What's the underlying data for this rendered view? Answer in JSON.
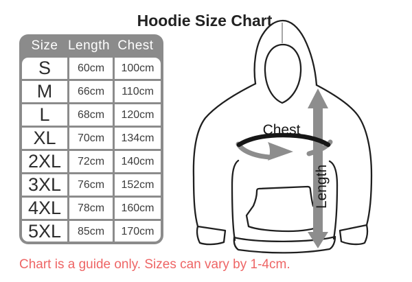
{
  "title": "Hoodie Size Chart",
  "table": {
    "headers": [
      "Size",
      "Length",
      "Chest"
    ],
    "rows": [
      [
        "S",
        "60cm",
        "100cm"
      ],
      [
        "M",
        "66cm",
        "110cm"
      ],
      [
        "L",
        "68cm",
        "120cm"
      ],
      [
        "XL",
        "70cm",
        "134cm"
      ],
      [
        "2XL",
        "72cm",
        "140cm"
      ],
      [
        "3XL",
        "76cm",
        "152cm"
      ],
      [
        "4XL",
        "78cm",
        "160cm"
      ],
      [
        "5XL",
        "85cm",
        "170cm"
      ]
    ]
  },
  "diagram": {
    "chest_label": "Chest",
    "length_label": "Length"
  },
  "note": "Chart is a guide only. Sizes can vary by 1-4cm.",
  "colors": {
    "table_gray": "#8b8b8b",
    "note_red": "#ee6565",
    "arrow_gray": "#8d8d8d",
    "outline_ink": "#1f1f1f"
  }
}
